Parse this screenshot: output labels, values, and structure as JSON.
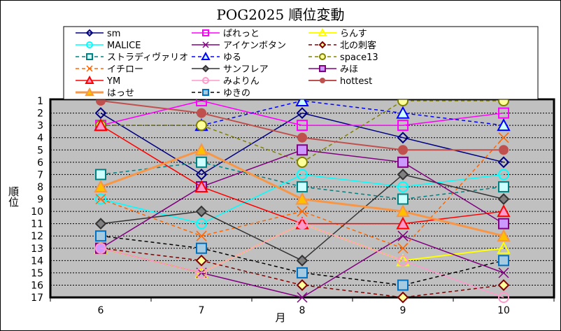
{
  "chart_data": {
    "type": "line",
    "title": "POG2025 順位変動",
    "xlabel": "月",
    "ylabel": "順位",
    "categories": [
      "6",
      "7",
      "8",
      "9",
      "10"
    ],
    "ylim": [
      1,
      17
    ],
    "y_reversed": true,
    "y_ticks": [
      "1",
      "2",
      "3",
      "4",
      "5",
      "6",
      "7",
      "8",
      "9",
      "10",
      "11",
      "12",
      "13",
      "14",
      "15",
      "16",
      "17"
    ],
    "grid": true,
    "legend_position": "top",
    "series": [
      {
        "name": "sm",
        "values": [
          2,
          7,
          2,
          4,
          6
        ],
        "color": "#000080",
        "marker": "diamond",
        "fill": "none",
        "dash": false,
        "width": 1.5
      },
      {
        "name": "ぱれっと",
        "values": [
          3,
          1,
          3,
          3,
          2
        ],
        "color": "#FF00FF",
        "marker": "square",
        "fill": "none",
        "dash": false,
        "width": 1.5
      },
      {
        "name": "らんす",
        "values": [
          13,
          15,
          11,
          14,
          13
        ],
        "color": "#FFFF00",
        "marker": "triangle",
        "fill": "none",
        "dash": false,
        "width": 2
      },
      {
        "name": "MALICE",
        "values": [
          9,
          11,
          7,
          8,
          7
        ],
        "color": "#00FFFF",
        "marker": "circle",
        "fill": "none",
        "dash": false,
        "width": 1.5
      },
      {
        "name": "アイケンボタン",
        "values": [
          13,
          15,
          17,
          12,
          15
        ],
        "color": "#800080",
        "marker": "x",
        "fill": "none",
        "dash": false,
        "width": 1.5
      },
      {
        "name": "北の刺客",
        "values": [
          13,
          14,
          16,
          17,
          16
        ],
        "color": "#800000",
        "marker": "diamond",
        "fill": "#FFFF99",
        "dash": true,
        "width": 1.5
      },
      {
        "name": "ストラディヴァリオ",
        "values": [
          7,
          6,
          8,
          9,
          8
        ],
        "color": "#008080",
        "marker": "square",
        "fill": "#CCFFFF",
        "dash": true,
        "width": 1.5
      },
      {
        "name": "ゆる",
        "values": [
          3,
          3,
          1,
          2,
          3
        ],
        "color": "#0000FF",
        "marker": "triangle",
        "fill": "#CCFFFF",
        "dash": true,
        "width": 1.5
      },
      {
        "name": "space13",
        "values": [
          3,
          3,
          6,
          1,
          1
        ],
        "color": "#808000",
        "marker": "circle",
        "fill": "#FFFF99",
        "dash": true,
        "width": 1.5
      },
      {
        "name": "イチロー",
        "values": [
          9,
          12,
          10,
          13,
          4
        ],
        "color": "#FF6600",
        "marker": "x",
        "fill": "none",
        "dash": true,
        "width": 1.5
      },
      {
        "name": "サンフレア",
        "values": [
          11,
          10,
          14,
          7,
          9
        ],
        "color": "#333333",
        "marker": "diamond",
        "fill": "#808080",
        "dash": false,
        "width": 1.5
      },
      {
        "name": "みほ",
        "values": [
          13,
          8,
          5,
          6,
          11
        ],
        "color": "#800080",
        "marker": "square",
        "fill": "#CC99FF",
        "dash": false,
        "width": 1.5
      },
      {
        "name": "YM",
        "values": [
          3,
          8,
          11,
          11,
          10
        ],
        "color": "#FF0000",
        "marker": "triangle",
        "fill": "#FF99CC",
        "dash": false,
        "width": 1.5
      },
      {
        "name": "みよりん",
        "values": [
          13,
          15,
          11,
          14,
          17
        ],
        "color": "#FF99CC",
        "marker": "circle",
        "fill": "none",
        "dash": false,
        "width": 1.5
      },
      {
        "name": "hottest",
        "values": [
          1,
          2,
          4,
          5,
          5
        ],
        "color": "#C0504D",
        "marker": "dot",
        "fill": "#C0504D",
        "dash": false,
        "width": 2
      },
      {
        "name": "はっせ",
        "values": [
          8,
          5,
          9,
          10,
          12
        ],
        "color": "#F79646",
        "marker": "triangle",
        "fill": "#FFC000",
        "dash": false,
        "width": 3
      },
      {
        "name": "ゆきの",
        "values": [
          12,
          13,
          15,
          16,
          14
        ],
        "color": "#000000",
        "marker": "square",
        "fill": "#A6CAE0",
        "mstroke": "#0070C0",
        "dash": true,
        "width": 1.5
      }
    ]
  }
}
